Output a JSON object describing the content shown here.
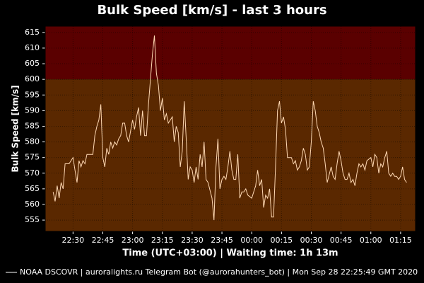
{
  "chart_data": {
    "type": "line",
    "title": "Bulk Speed [km/s] - last 3 hours",
    "y_label": "Bulk Speed [km/s]",
    "x_label": "Time (UTC+03:00) | Waiting time: 1h 13m",
    "x": [
      1340,
      1341,
      1342,
      1343,
      1344,
      1345,
      1346,
      1347,
      1348,
      1349,
      1350,
      1351,
      1352,
      1353,
      1354,
      1355,
      1356,
      1357,
      1358,
      1360,
      1361,
      1362,
      1363,
      1364,
      1365,
      1366,
      1367,
      1368,
      1369,
      1370,
      1371,
      1372,
      1373,
      1374,
      1375,
      1376,
      1377,
      1378,
      1380,
      1381,
      1382,
      1383,
      1384,
      1385,
      1386,
      1387,
      1388,
      1389,
      1390,
      1391,
      1392,
      1393,
      1394,
      1395,
      1396,
      1397,
      1398,
      1400,
      1401,
      1402,
      1403,
      1404,
      1405,
      1406,
      1407,
      1408,
      1409,
      1410,
      1411,
      1412,
      1413,
      1414,
      1415,
      1416,
      1417,
      1418,
      1420,
      1421,
      1422,
      1423,
      1424,
      1425,
      1426,
      1427,
      1428,
      1429,
      1430,
      1431,
      1432,
      1433,
      1434,
      1435,
      1436,
      1437,
      1438,
      1440,
      1441,
      1442,
      1443,
      1444,
      1445,
      1446,
      1447,
      1448,
      1449,
      1450,
      1451,
      1452,
      1453,
      1454,
      1455,
      1456,
      1457,
      1458,
      1460,
      1461,
      1462,
      1463,
      1464,
      1465,
      1466,
      1467,
      1468,
      1469,
      1470,
      1471,
      1472,
      1473,
      1474,
      1475,
      1476,
      1477,
      1478,
      1480,
      1481,
      1482,
      1483,
      1484,
      1485,
      1486,
      1487,
      1488,
      1489,
      1490,
      1491,
      1492,
      1493,
      1494,
      1495,
      1496,
      1497,
      1498,
      1500,
      1501,
      1502,
      1503,
      1504,
      1505,
      1506,
      1507,
      1508,
      1509,
      1510,
      1511,
      1512,
      1513,
      1514,
      1515,
      1516,
      1517,
      1518
    ],
    "series": [
      {
        "name": "NOAA DSCOVR | auroralights.ru Telegram Bot (@aurorahunters_bot) | Mon Sep 28 22:25:49 GMT 2020",
        "color": "#ffd9b3",
        "values": [
          564,
          561,
          566,
          562,
          567,
          565,
          573,
          573,
          573,
          574,
          575,
          571,
          567,
          574,
          572,
          574,
          573,
          576,
          576,
          576,
          582,
          585,
          587,
          592,
          575,
          572,
          578,
          576,
          580,
          578,
          580,
          579,
          581,
          582,
          586,
          586,
          582,
          580,
          587,
          584,
          588,
          591,
          582,
          590,
          582,
          582,
          592,
          600,
          608,
          614,
          602,
          598,
          590,
          594,
          587,
          589,
          586,
          588,
          580,
          585,
          583,
          572,
          577,
          593,
          581,
          568,
          572,
          571,
          567,
          572,
          568,
          576,
          572,
          580,
          568,
          567,
          562,
          555,
          572,
          581,
          565,
          568,
          569,
          568,
          572,
          577,
          571,
          568,
          568,
          576,
          562,
          564,
          564,
          565,
          563,
          562,
          564,
          566,
          571,
          566,
          568,
          559,
          563,
          562,
          565,
          556,
          556,
          572,
          590,
          593,
          586,
          588,
          584,
          575,
          575,
          573,
          574,
          571,
          572,
          574,
          578,
          576,
          571,
          572,
          580,
          593,
          590,
          585,
          583,
          580,
          578,
          573,
          567,
          572,
          569,
          568,
          573,
          577,
          574,
          570,
          568,
          568,
          570,
          567,
          568,
          566,
          570,
          573,
          572,
          573,
          571,
          574,
          575,
          572,
          576,
          575,
          570,
          573,
          572,
          575,
          577,
          570,
          569,
          570,
          569,
          569,
          568,
          569,
          572,
          568,
          567
        ]
      }
    ],
    "legend_color": "#aaaaaa",
    "xlim": [
      1336,
      1522.5
    ],
    "xticks": [
      {
        "value": 1350,
        "label": "22:30"
      },
      {
        "value": 1365,
        "label": "22:45"
      },
      {
        "value": 1380,
        "label": "23:00"
      },
      {
        "value": 1395,
        "label": "23:15"
      },
      {
        "value": 1410,
        "label": "23:30"
      },
      {
        "value": 1425,
        "label": "23:45"
      },
      {
        "value": 1440,
        "label": "00:00"
      },
      {
        "value": 1455,
        "label": "00:15"
      },
      {
        "value": 1470,
        "label": "00:30"
      },
      {
        "value": 1485,
        "label": "00:45"
      },
      {
        "value": 1500,
        "label": "01:00"
      },
      {
        "value": 1515,
        "label": "01:15"
      }
    ],
    "ylim": [
      551.4,
      617
    ],
    "yticks": [
      555,
      560,
      565,
      570,
      575,
      580,
      585,
      590,
      595,
      600,
      605,
      610,
      615
    ],
    "threshold": 600,
    "color_above": "#5a0000",
    "color_below": "#5a2800",
    "grid": true
  }
}
